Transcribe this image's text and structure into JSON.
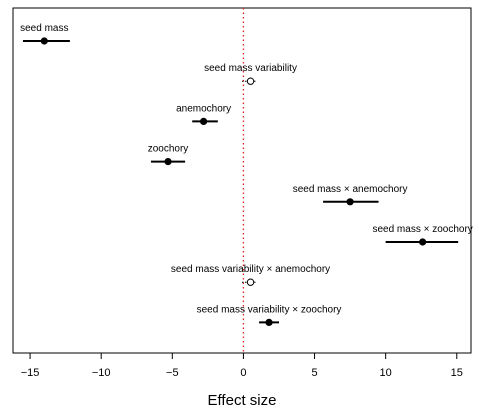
{
  "chart_data": {
    "type": "scatter",
    "subtype": "forest-plot",
    "title": "",
    "xlabel": "Effect size",
    "ylabel": "",
    "xlim": [
      -16.2,
      16.0
    ],
    "xticks": [
      -15,
      -10,
      -5,
      0,
      5,
      10,
      15
    ],
    "xtick_labels": [
      "−15",
      "−10",
      "−5",
      "0",
      "5",
      "10",
      "15"
    ],
    "reference_line": {
      "x": 0,
      "style": "dotted",
      "color": "#e02020"
    },
    "grid": false,
    "legend": "none",
    "point_color": "#000000",
    "rows": [
      {
        "label": "seed mass",
        "estimate": -14.0,
        "lower": -15.5,
        "upper": -12.2,
        "filled": true
      },
      {
        "label": "seed mass variability",
        "estimate": 0.5,
        "lower": -0.1,
        "upper": 0.9,
        "filled": false
      },
      {
        "label": "anemochory",
        "estimate": -2.8,
        "lower": -3.6,
        "upper": -1.8,
        "filled": true
      },
      {
        "label": "zoochory",
        "estimate": -5.3,
        "lower": -6.5,
        "upper": -4.1,
        "filled": true
      },
      {
        "label": "seed mass × anemochory",
        "estimate": 7.5,
        "lower": 5.6,
        "upper": 9.5,
        "filled": true
      },
      {
        "label": "seed mass × zoochory",
        "estimate": 12.6,
        "lower": 10.0,
        "upper": 15.1,
        "filled": true
      },
      {
        "label": "seed mass variability × anemochory",
        "estimate": 0.5,
        "lower": -0.1,
        "upper": 0.9,
        "filled": false
      },
      {
        "label": "seed mass variability × zoochory",
        "estimate": 1.8,
        "lower": 1.1,
        "upper": 2.5,
        "filled": true
      }
    ]
  }
}
